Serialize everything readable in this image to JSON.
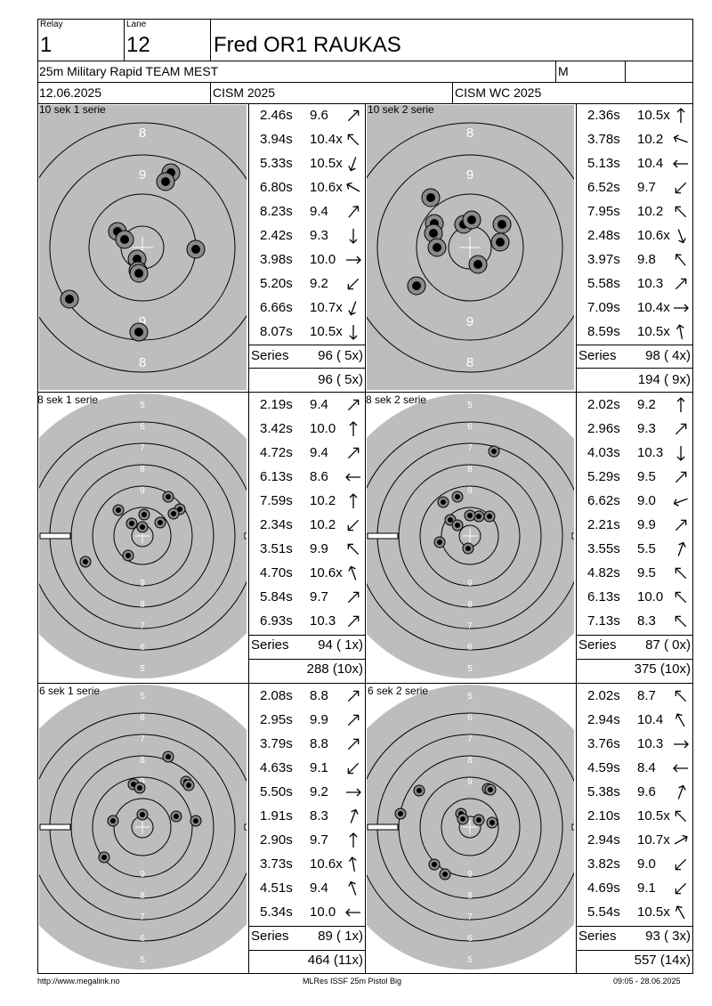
{
  "header": {
    "relay_label": "Relay",
    "relay_value": "1",
    "lane_label": "Lane",
    "lane_value": "12",
    "shooter_name": "Fred OR1 RAUKAS",
    "event": "25m Military Rapid TEAM MEST",
    "gender": "M",
    "date": "12.06.2025",
    "competition": "CISM 2025",
    "championship": "CISM WC 2025"
  },
  "sections": [
    {
      "title": "10 sek 1 serie",
      "series_label": "Series",
      "series_value": "96 ( 5x)",
      "total": "96 ( 5x)",
      "shots": [
        {
          "time": "2.46s",
          "score": "9.6",
          "dir": 45
        },
        {
          "time": "3.94s",
          "score": "10.4x",
          "dir": 315
        },
        {
          "time": "5.33s",
          "score": "10.5x",
          "dir": 200
        },
        {
          "time": "6.80s",
          "score": "10.6x",
          "dir": 300
        },
        {
          "time": "8.23s",
          "score": "9.4",
          "dir": 40
        },
        {
          "time": "2.42s",
          "score": "9.3",
          "dir": 180
        },
        {
          "time": "3.98s",
          "score": "10.0",
          "dir": 90
        },
        {
          "time": "5.20s",
          "score": "9.2",
          "dir": 225
        },
        {
          "time": "6.66s",
          "score": "10.7x",
          "dir": 200
        },
        {
          "time": "8.07s",
          "score": "10.5x",
          "dir": 180
        }
      ]
    },
    {
      "title": "10 sek 2 serie",
      "series_label": "Series",
      "series_value": "98 ( 4x)",
      "total": "194 ( 9x)",
      "shots": [
        {
          "time": "2.36s",
          "score": "10.5x",
          "dir": 0
        },
        {
          "time": "3.78s",
          "score": "10.2",
          "dir": 290
        },
        {
          "time": "5.13s",
          "score": "10.4",
          "dir": 270
        },
        {
          "time": "6.52s",
          "score": "9.7",
          "dir": 225
        },
        {
          "time": "7.95s",
          "score": "10.2",
          "dir": 315
        },
        {
          "time": "2.48s",
          "score": "10.6x",
          "dir": 160
        },
        {
          "time": "3.97s",
          "score": "9.8",
          "dir": 320
        },
        {
          "time": "5.58s",
          "score": "10.3",
          "dir": 45
        },
        {
          "time": "7.09s",
          "score": "10.4x",
          "dir": 90
        },
        {
          "time": "8.59s",
          "score": "10.5x",
          "dir": 350
        }
      ]
    },
    {
      "title": "8 sek 1 serie",
      "series_label": "Series",
      "series_value": "94 ( 1x)",
      "total": "288 (10x)",
      "shots": [
        {
          "time": "2.19s",
          "score": "9.4",
          "dir": 45
        },
        {
          "time": "3.42s",
          "score": "10.0",
          "dir": 0
        },
        {
          "time": "4.72s",
          "score": "9.4",
          "dir": 45
        },
        {
          "time": "6.13s",
          "score": "8.6",
          "dir": 270
        },
        {
          "time": "7.59s",
          "score": "10.2",
          "dir": 0
        },
        {
          "time": "2.34s",
          "score": "10.2",
          "dir": 225
        },
        {
          "time": "3.51s",
          "score": "9.9",
          "dir": 315
        },
        {
          "time": "4.70s",
          "score": "10.6x",
          "dir": 340
        },
        {
          "time": "5.84s",
          "score": "9.7",
          "dir": 45
        },
        {
          "time": "6.93s",
          "score": "10.3",
          "dir": 45
        }
      ]
    },
    {
      "title": "8 sek 2 serie",
      "series_label": "Series",
      "series_value": "87 ( 0x)",
      "total": "375 (10x)",
      "shots": [
        {
          "time": "2.02s",
          "score": "9.2",
          "dir": 0
        },
        {
          "time": "2.96s",
          "score": "9.3",
          "dir": 45
        },
        {
          "time": "4.03s",
          "score": "10.3",
          "dir": 180
        },
        {
          "time": "5.29s",
          "score": "9.5",
          "dir": 45
        },
        {
          "time": "6.62s",
          "score": "9.0",
          "dir": 250
        },
        {
          "time": "2.21s",
          "score": "9.9",
          "dir": 45
        },
        {
          "time": "3.55s",
          "score": "5.5",
          "dir": 20
        },
        {
          "time": "4.82s",
          "score": "9.5",
          "dir": 315
        },
        {
          "time": "6.13s",
          "score": "10.0",
          "dir": 315
        },
        {
          "time": "7.13s",
          "score": "8.3",
          "dir": 315
        }
      ]
    },
    {
      "title": "6 sek 1 serie",
      "series_label": "Series",
      "series_value": "89 ( 1x)",
      "total": "464 (11x)",
      "shots": [
        {
          "time": "2.08s",
          "score": "8.8",
          "dir": 45
        },
        {
          "time": "2.95s",
          "score": "9.9",
          "dir": 45
        },
        {
          "time": "3.79s",
          "score": "8.8",
          "dir": 45
        },
        {
          "time": "4.63s",
          "score": "9.1",
          "dir": 225
        },
        {
          "time": "5.50s",
          "score": "9.2",
          "dir": 90
        },
        {
          "time": "1.91s",
          "score": "8.3",
          "dir": 20
        },
        {
          "time": "2.90s",
          "score": "9.7",
          "dir": 0
        },
        {
          "time": "3.73s",
          "score": "10.6x",
          "dir": 350
        },
        {
          "time": "4.51s",
          "score": "9.4",
          "dir": 340
        },
        {
          "time": "5.34s",
          "score": "10.0",
          "dir": 270
        }
      ]
    },
    {
      "title": "6 sek 2 serie",
      "series_label": "Series",
      "series_value": "93 ( 3x)",
      "total": "557 (14x)",
      "shots": [
        {
          "time": "2.02s",
          "score": "8.7",
          "dir": 315
        },
        {
          "time": "2.94s",
          "score": "10.4",
          "dir": 330
        },
        {
          "time": "3.76s",
          "score": "10.3",
          "dir": 90
        },
        {
          "time": "4.59s",
          "score": "8.4",
          "dir": 270
        },
        {
          "time": "5.38s",
          "score": "9.6",
          "dir": 20
        },
        {
          "time": "2.10s",
          "score": "10.5x",
          "dir": 315
        },
        {
          "time": "2.94s",
          "score": "10.7x",
          "dir": 60
        },
        {
          "time": "3.82s",
          "score": "9.0",
          "dir": 225
        },
        {
          "time": "4.69s",
          "score": "9.1",
          "dir": 225
        },
        {
          "time": "5.54s",
          "score": "10.5x",
          "dir": 330
        }
      ]
    }
  ],
  "targets": {
    "t10_1": {
      "ring_numbers": [
        "8",
        "9",
        "9",
        "8"
      ]
    },
    "t10_2": {
      "ring_numbers": [
        "8",
        "9",
        "9",
        "8"
      ]
    },
    "t8_1": {
      "ring_numbers": [
        "5",
        "6",
        "7",
        "8",
        "9",
        "9",
        "8",
        "7",
        "6",
        "5"
      ]
    },
    "t8_2": {
      "ring_numbers": [
        "5",
        "6",
        "7",
        "8",
        "9",
        "9",
        "8",
        "7",
        "6",
        "5"
      ]
    },
    "t6_1": {
      "ring_numbers": [
        "5",
        "6",
        "7",
        "8",
        "9",
        "9",
        "8",
        "7",
        "6",
        "5"
      ]
    },
    "t6_2": {
      "ring_numbers": [
        "5",
        "6",
        "7",
        "8",
        "9",
        "9",
        "8",
        "7",
        "6",
        "5"
      ]
    }
  },
  "footer": {
    "website": "http://www.megalink.no",
    "software": "MLRes ISSF 25m Pistol Big",
    "timestamp": "09:05 - 28.06.2025"
  }
}
